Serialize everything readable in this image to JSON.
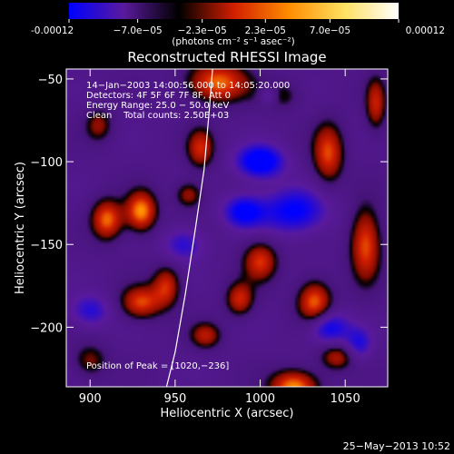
{
  "colorbar": {
    "tick_labels": [
      "-0.00012",
      "−7.0e−05",
      "−2.3e−05",
      "2.3e−05",
      "7.0e−05",
      "0.00012"
    ],
    "tick_values": [
      -0.00012,
      -7e-05,
      -2.3e-05,
      2.3e-05,
      7e-05,
      0.00012
    ],
    "range": [
      -0.00012,
      0.00012
    ],
    "units": "(photons cm⁻² s⁻¹ asec⁻²)",
    "colors": [
      "#0000ff",
      "#5a1a9c",
      "#000000",
      "#d21e00",
      "#ff8c00",
      "#ffe060",
      "#ffffff"
    ]
  },
  "chart_data": {
    "type": "heatmap",
    "title": "Reconstructed RHESSI Image",
    "xlabel": "Heliocentric X (arcsec)",
    "ylabel": "Heliocentric Y (arcsec)",
    "xlim": [
      886,
      1075
    ],
    "ylim": [
      -236,
      -44
    ],
    "x_ticks": [
      900,
      950,
      1000,
      1050
    ],
    "x_tick_labels": [
      "900",
      "950",
      "1000",
      "1050"
    ],
    "y_ticks": [
      -50,
      -100,
      -150,
      -200
    ],
    "y_tick_labels": [
      "−50",
      "−100",
      "−150",
      "−200"
    ],
    "info_lines": [
      "14−Jan−2003 14:00:56.000 to 14:05:20.000",
      "Detectors: 4F 5F 6F 7F 8F, Att 0",
      "Energy Range: 25.0 − 50.0 keV",
      "Clean    Total counts: 2.50E+03"
    ],
    "peak_label": "Position of Peak = [1020,−236]",
    "peak_position": [
      1020,
      -236
    ],
    "limb_curve": [
      [
        944,
        -240
      ],
      [
        950,
        -215
      ],
      [
        956,
        -180
      ],
      [
        962,
        -140
      ],
      [
        967,
        -105
      ],
      [
        970,
        -70
      ],
      [
        972,
        -44
      ]
    ],
    "sources": [
      [
        1020,
        -236,
        1.0,
        14,
        10
      ],
      [
        1032,
        -185,
        0.9,
        10,
        13
      ],
      [
        910,
        -135,
        0.9,
        9,
        12
      ],
      [
        930,
        -130,
        1.0,
        9,
        12
      ],
      [
        975,
        -52,
        0.9,
        18,
        12
      ],
      [
        965,
        -92,
        0.7,
        8,
        12
      ],
      [
        958,
        -120,
        0.55,
        8,
        8
      ],
      [
        1040,
        -95,
        0.8,
        9,
        18
      ],
      [
        1062,
        -150,
        0.85,
        9,
        22
      ],
      [
        1068,
        -65,
        0.65,
        6,
        16
      ],
      [
        930,
        -185,
        0.8,
        12,
        10
      ],
      [
        945,
        -175,
        0.7,
        8,
        12
      ],
      [
        905,
        -78,
        0.5,
        8,
        10
      ],
      [
        1000,
        -160,
        0.75,
        10,
        12
      ],
      [
        988,
        -183,
        0.7,
        8,
        10
      ],
      [
        968,
        -205,
        0.6,
        9,
        8
      ],
      [
        1045,
        -218,
        0.6,
        10,
        8
      ],
      [
        900,
        -220,
        0.45,
        10,
        10
      ],
      [
        1010,
        -60,
        0.45,
        12,
        8
      ],
      [
        1020,
        -130,
        -0.7,
        20,
        14
      ],
      [
        1000,
        -100,
        -0.9,
        14,
        10
      ],
      [
        1005,
        -60,
        -0.6,
        6,
        6
      ],
      [
        990,
        -130,
        -0.7,
        12,
        10
      ],
      [
        1040,
        -200,
        -0.7,
        12,
        10
      ],
      [
        900,
        -190,
        -0.5,
        12,
        10
      ],
      [
        955,
        -150,
        -0.5,
        12,
        10
      ],
      [
        1058,
        -210,
        -0.5,
        8,
        10
      ]
    ]
  },
  "footer": {
    "timestamp": "25−May−2013 10:52"
  }
}
